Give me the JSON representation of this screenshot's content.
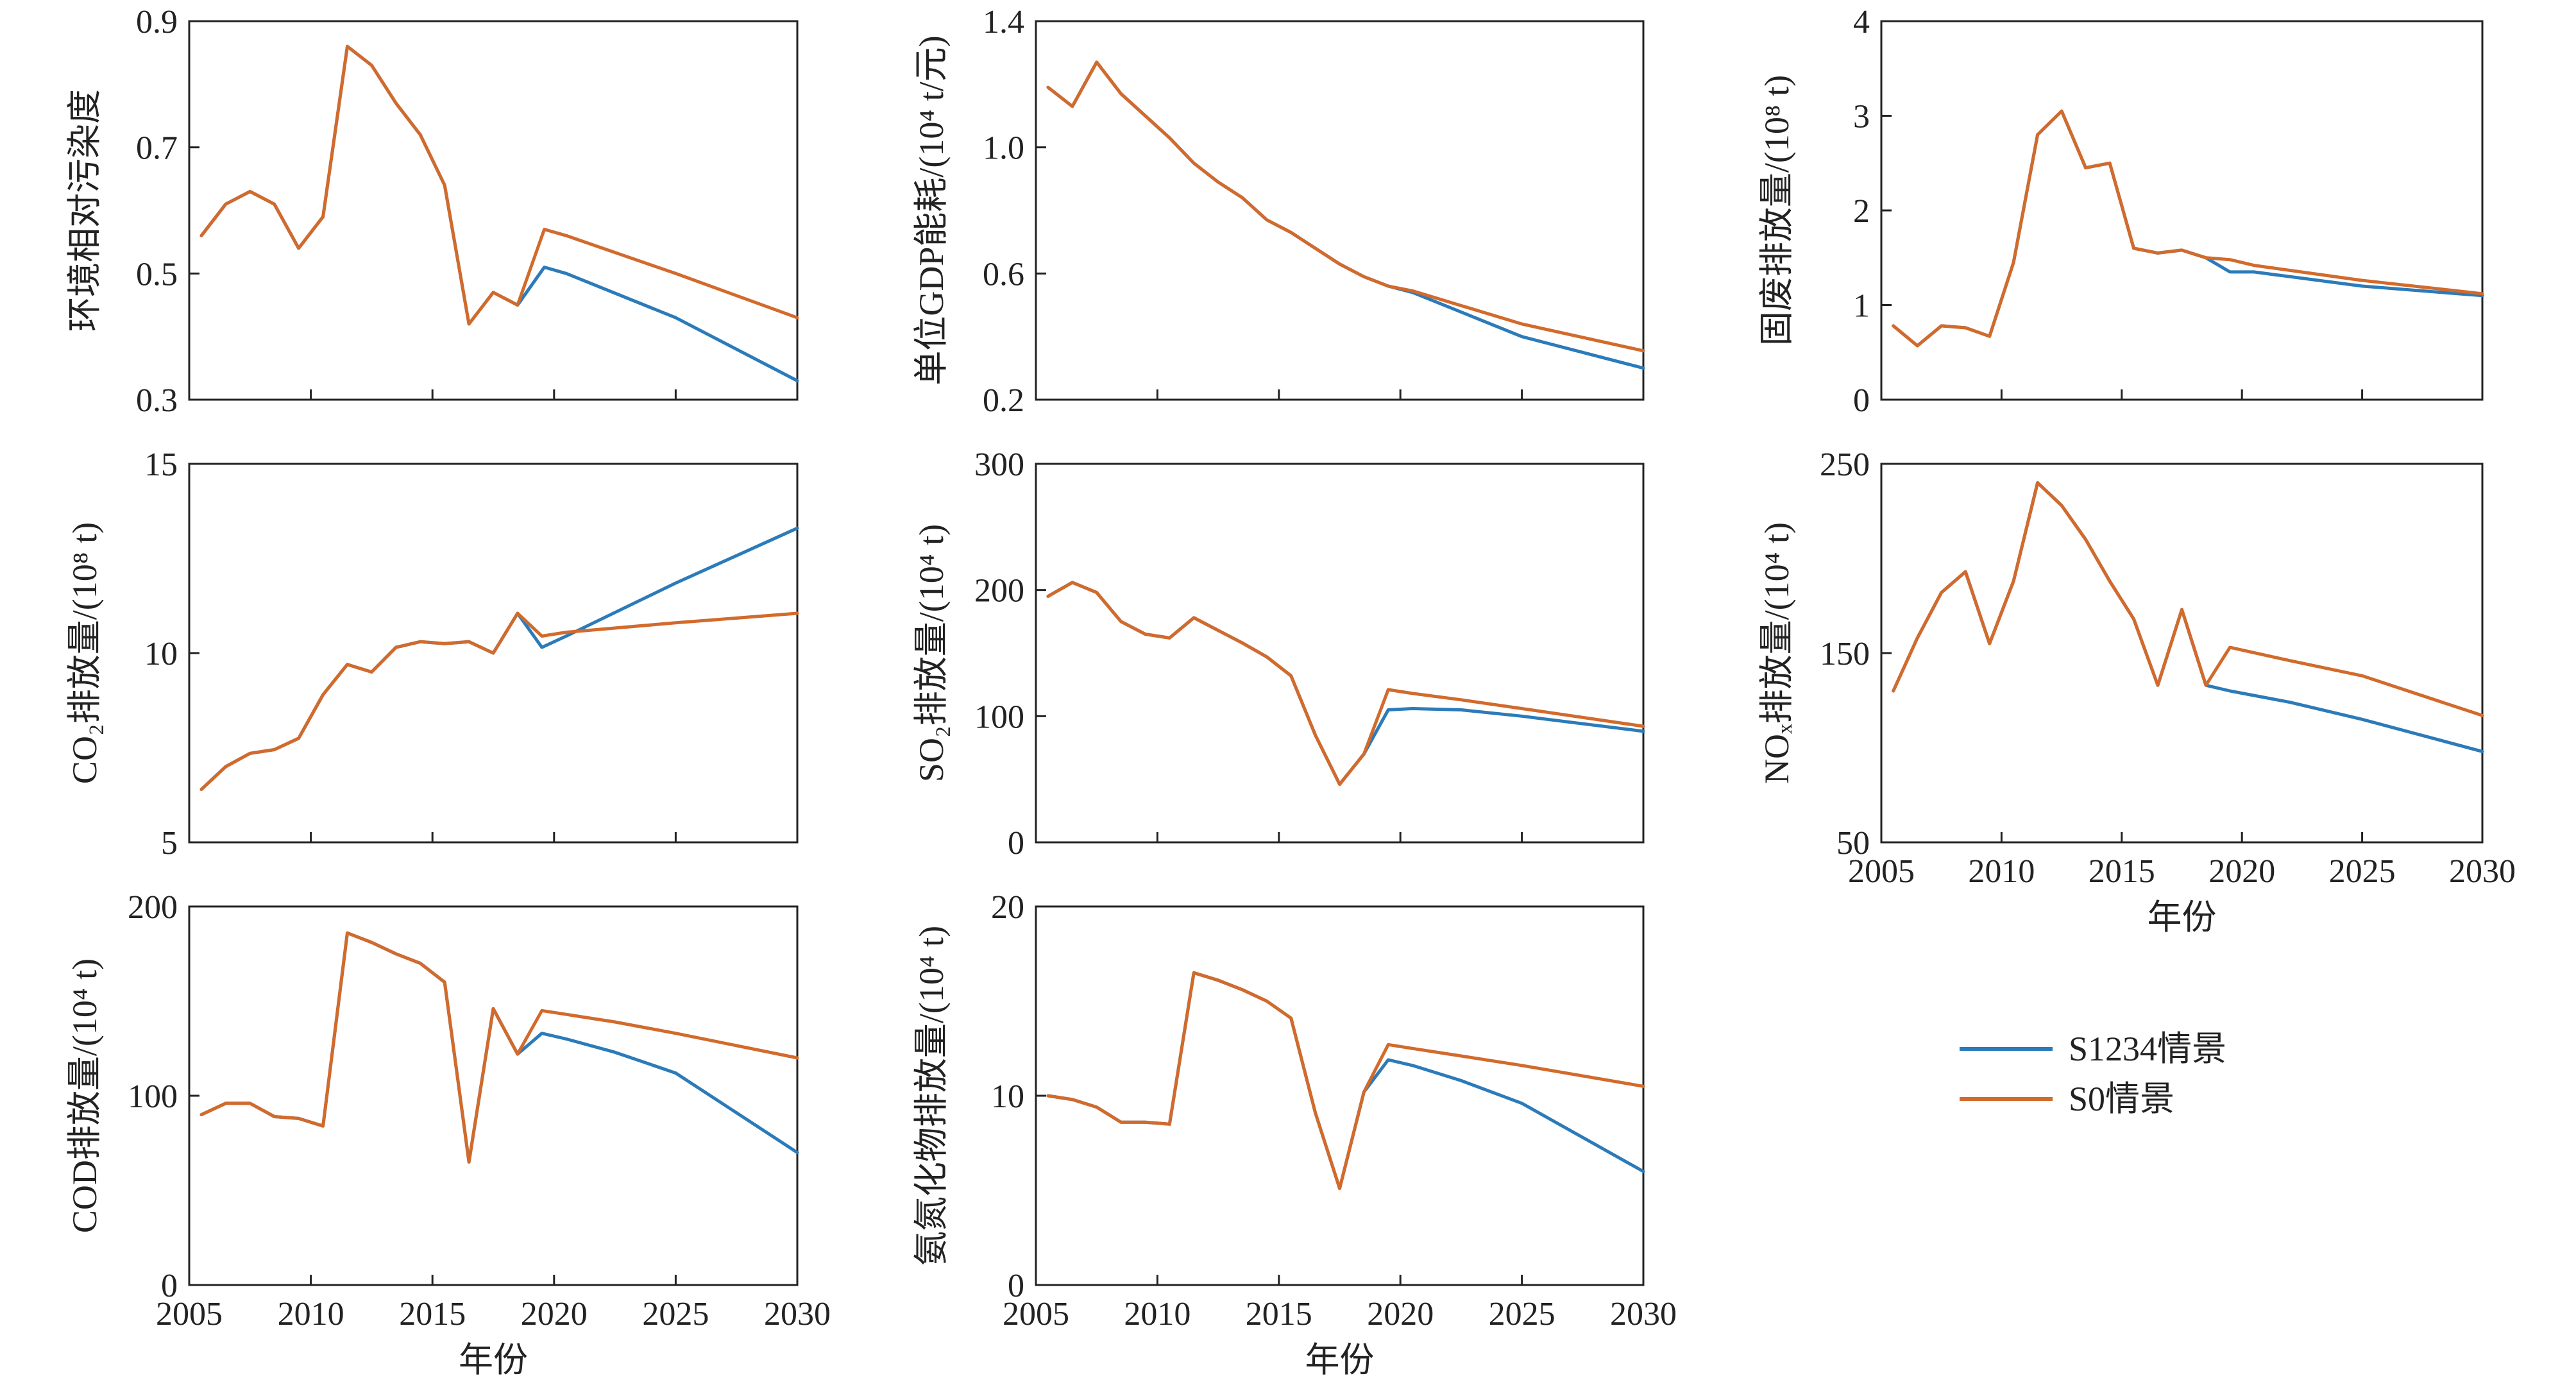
{
  "legend": {
    "items": [
      {
        "label": "S1234情景",
        "color": "#2b7bba"
      },
      {
        "label": "S0情景",
        "color": "#d26a2c"
      }
    ]
  },
  "chart_data": [
    {
      "type": "line",
      "ylabel": "环境相对污染度",
      "xlabel": "",
      "xlim": [
        2005,
        2030
      ],
      "ylim": [
        0.3,
        0.9
      ],
      "xticks": [
        "2005",
        "2010",
        "2015",
        "2020",
        "2025",
        "2030"
      ],
      "yticks": [
        "0.3",
        "0.5",
        "0.7",
        "0.9"
      ],
      "x": [
        2005.5,
        2006.5,
        2007.5,
        2008.5,
        2009.5,
        2010.5,
        2011.5,
        2012.5,
        2013.5,
        2014.5,
        2015.5,
        2016.5,
        2017.5,
        2018.5,
        2019.6,
        2020.5,
        2025,
        2030
      ],
      "series": [
        {
          "name": "S1234情景",
          "values": [
            0.56,
            0.61,
            0.63,
            0.61,
            0.54,
            0.59,
            0.86,
            0.83,
            0.77,
            0.72,
            0.64,
            0.42,
            0.47,
            0.45,
            0.51,
            0.5,
            0.43,
            0.33
          ]
        },
        {
          "name": "S0情景",
          "values": [
            0.56,
            0.61,
            0.63,
            0.61,
            0.54,
            0.59,
            0.86,
            0.83,
            0.77,
            0.72,
            0.64,
            0.42,
            0.47,
            0.45,
            0.57,
            0.56,
            0.5,
            0.43
          ]
        }
      ]
    },
    {
      "type": "line",
      "ylabel": "单位GDP能耗/(10⁴ t/元)",
      "xlabel": "",
      "xlim": [
        2005,
        2030
      ],
      "ylim": [
        0.2,
        1.4
      ],
      "xticks": [
        "2005",
        "2010",
        "2015",
        "2020",
        "2025",
        "2030"
      ],
      "yticks": [
        "0.2",
        "0.6",
        "1.0",
        "1.4"
      ],
      "x": [
        2005.5,
        2006.5,
        2007.5,
        2008.5,
        2009.5,
        2010.5,
        2011.5,
        2012.5,
        2013.5,
        2014.5,
        2015.5,
        2016.5,
        2017.5,
        2018.5,
        2019.5,
        2020.5,
        2025,
        2030
      ],
      "series": [
        {
          "name": "S1234情景",
          "values": [
            1.19,
            1.13,
            1.27,
            1.17,
            1.1,
            1.03,
            0.95,
            0.89,
            0.84,
            0.77,
            0.73,
            0.68,
            0.63,
            0.59,
            0.56,
            0.54,
            0.4,
            0.3
          ]
        },
        {
          "name": "S0情景",
          "values": [
            1.19,
            1.13,
            1.27,
            1.17,
            1.1,
            1.03,
            0.95,
            0.89,
            0.84,
            0.77,
            0.73,
            0.68,
            0.63,
            0.59,
            0.56,
            0.545,
            0.44,
            0.355
          ]
        }
      ]
    },
    {
      "type": "line",
      "ylabel": "固废排放量/(10⁸ t)",
      "xlabel": "",
      "xlim": [
        2005,
        2030
      ],
      "ylim": [
        0,
        4
      ],
      "xticks": [
        "2005",
        "2010",
        "2015",
        "2020",
        "2025",
        "2030"
      ],
      "yticks": [
        "0",
        "1",
        "2",
        "3",
        "4"
      ],
      "x": [
        2005.5,
        2006.5,
        2007.5,
        2008.5,
        2009.5,
        2010.5,
        2011.5,
        2012.5,
        2013.5,
        2014.5,
        2015.5,
        2016.5,
        2017.5,
        2018.5,
        2019.5,
        2020.5,
        2025,
        2030
      ],
      "series": [
        {
          "name": "S1234情景",
          "values": [
            0.78,
            0.57,
            0.78,
            0.76,
            0.67,
            1.45,
            2.8,
            3.05,
            2.45,
            2.5,
            1.6,
            1.55,
            1.58,
            1.5,
            1.35,
            1.35,
            1.2,
            1.1
          ]
        },
        {
          "name": "S0情景",
          "values": [
            0.78,
            0.57,
            0.78,
            0.76,
            0.67,
            1.45,
            2.8,
            3.05,
            2.45,
            2.5,
            1.6,
            1.55,
            1.58,
            1.5,
            1.48,
            1.42,
            1.26,
            1.12
          ]
        }
      ]
    },
    {
      "type": "line",
      "ylabel": "CO₂排放量/(10⁸ t)",
      "xlabel": "",
      "xlim": [
        2005,
        2030
      ],
      "ylim": [
        5,
        15
      ],
      "xticks": [
        "2005",
        "2010",
        "2015",
        "2020",
        "2025",
        "2030"
      ],
      "yticks": [
        "5",
        "10",
        "15"
      ],
      "x": [
        2005.5,
        2006.5,
        2007.5,
        2008.5,
        2009.5,
        2010.5,
        2011.5,
        2012.5,
        2013.5,
        2014.5,
        2015.5,
        2016.5,
        2017.5,
        2018.5,
        2019.5,
        2020.5,
        2025,
        2030
      ],
      "series": [
        {
          "name": "S1234情景",
          "values": [
            6.4,
            7.0,
            7.35,
            7.45,
            7.75,
            8.9,
            9.7,
            9.5,
            10.15,
            10.3,
            10.25,
            10.3,
            10.0,
            11.05,
            10.15,
            10.45,
            11.85,
            13.3
          ]
        },
        {
          "name": "S0情景",
          "values": [
            6.4,
            7.0,
            7.35,
            7.45,
            7.75,
            8.9,
            9.7,
            9.5,
            10.15,
            10.3,
            10.25,
            10.3,
            10.0,
            11.05,
            10.45,
            10.55,
            10.8,
            11.05
          ]
        }
      ]
    },
    {
      "type": "line",
      "ylabel": "SO₂排放量/(10⁴ t)",
      "xlabel": "",
      "xlim": [
        2005,
        2030
      ],
      "ylim": [
        0,
        300
      ],
      "xticks": [
        "2005",
        "2010",
        "2015",
        "2020",
        "2025",
        "2030"
      ],
      "yticks": [
        "0",
        "100",
        "200",
        "300"
      ],
      "x": [
        2005.5,
        2006.5,
        2007.5,
        2008.5,
        2009.5,
        2010.5,
        2011.5,
        2012.5,
        2013.5,
        2014.5,
        2015.5,
        2016.5,
        2017.5,
        2018.5,
        2019.5,
        2020.5,
        2022.5,
        2025,
        2030
      ],
      "series": [
        {
          "name": "S1234情景",
          "values": [
            195,
            206,
            198,
            175,
            165,
            162,
            178,
            168,
            158,
            147,
            132,
            85,
            46,
            70,
            105,
            106,
            105,
            100,
            88
          ]
        },
        {
          "name": "S0情景",
          "values": [
            195,
            206,
            198,
            175,
            165,
            162,
            178,
            168,
            158,
            147,
            132,
            85,
            46,
            70,
            121,
            118,
            113,
            106,
            92
          ]
        }
      ]
    },
    {
      "type": "line",
      "ylabel": "NOₓ排放量/(10⁴ t)",
      "xlabel": "年份",
      "xlim": [
        2005,
        2030
      ],
      "ylim": [
        50,
        250
      ],
      "xticks": [
        "2005",
        "2010",
        "2015",
        "2020",
        "2025",
        "2030"
      ],
      "yticks": [
        "50",
        "150",
        "250"
      ],
      "x": [
        2005.5,
        2006.5,
        2007.5,
        2008.5,
        2009.5,
        2010.5,
        2011.5,
        2012.5,
        2013.5,
        2014.5,
        2015.5,
        2016.5,
        2017.5,
        2018.5,
        2019.5,
        2022,
        2025,
        2030
      ],
      "series": [
        {
          "name": "S1234情景",
          "values": [
            130,
            158,
            182,
            193,
            155,
            188,
            240,
            228,
            210,
            188,
            168,
            133,
            173,
            133,
            130,
            124,
            115,
            98
          ]
        },
        {
          "name": "S0情景",
          "values": [
            130,
            158,
            182,
            193,
            155,
            188,
            240,
            228,
            210,
            188,
            168,
            133,
            173,
            133,
            153,
            146,
            138,
            117
          ]
        }
      ]
    },
    {
      "type": "line",
      "ylabel": "COD排放量/(10⁴ t)",
      "xlabel": "年份",
      "xlim": [
        2005,
        2030
      ],
      "ylim": [
        0,
        200
      ],
      "xticks": [
        "2005",
        "2010",
        "2015",
        "2020",
        "2025",
        "2030"
      ],
      "yticks": [
        "0",
        "100",
        "200"
      ],
      "x": [
        2005.5,
        2006.5,
        2007.5,
        2008.5,
        2009.5,
        2010.5,
        2011.5,
        2012.5,
        2013.5,
        2014.5,
        2015.5,
        2016.5,
        2017.5,
        2018.5,
        2019.5,
        2020.5,
        2022.5,
        2025,
        2030
      ],
      "series": [
        {
          "name": "S1234情景",
          "values": [
            90,
            96,
            96,
            89,
            88,
            84,
            186,
            181,
            175,
            170,
            160,
            65,
            146,
            122,
            133,
            130,
            123,
            112,
            70
          ]
        },
        {
          "name": "S0情景",
          "values": [
            90,
            96,
            96,
            89,
            88,
            84,
            186,
            181,
            175,
            170,
            160,
            65,
            146,
            122,
            145,
            143,
            139,
            133,
            120
          ]
        }
      ]
    },
    {
      "type": "line",
      "ylabel": "氨氮化物排放量/(10⁴ t)",
      "xlabel": "年份",
      "xlim": [
        2005,
        2030
      ],
      "ylim": [
        0,
        20
      ],
      "xticks": [
        "2005",
        "2010",
        "2015",
        "2020",
        "2025",
        "2030"
      ],
      "yticks": [
        "0",
        "10",
        "20"
      ],
      "x": [
        2005.5,
        2006.5,
        2007.5,
        2008.5,
        2009.5,
        2010.5,
        2011.5,
        2012.5,
        2013.5,
        2014.5,
        2015.5,
        2016.5,
        2017.5,
        2018.5,
        2019.5,
        2020.5,
        2022.5,
        2025,
        2030
      ],
      "series": [
        {
          "name": "S1234情景",
          "values": [
            10.0,
            9.8,
            9.4,
            8.6,
            8.6,
            8.5,
            16.5,
            16.1,
            15.6,
            15.0,
            14.1,
            9.1,
            5.1,
            10.2,
            11.9,
            11.6,
            10.8,
            9.6,
            6.0
          ]
        },
        {
          "name": "S0情景",
          "values": [
            10.0,
            9.8,
            9.4,
            8.6,
            8.6,
            8.5,
            16.5,
            16.1,
            15.6,
            15.0,
            14.1,
            9.1,
            5.1,
            10.2,
            12.7,
            12.5,
            12.1,
            11.6,
            10.5
          ]
        }
      ]
    }
  ]
}
